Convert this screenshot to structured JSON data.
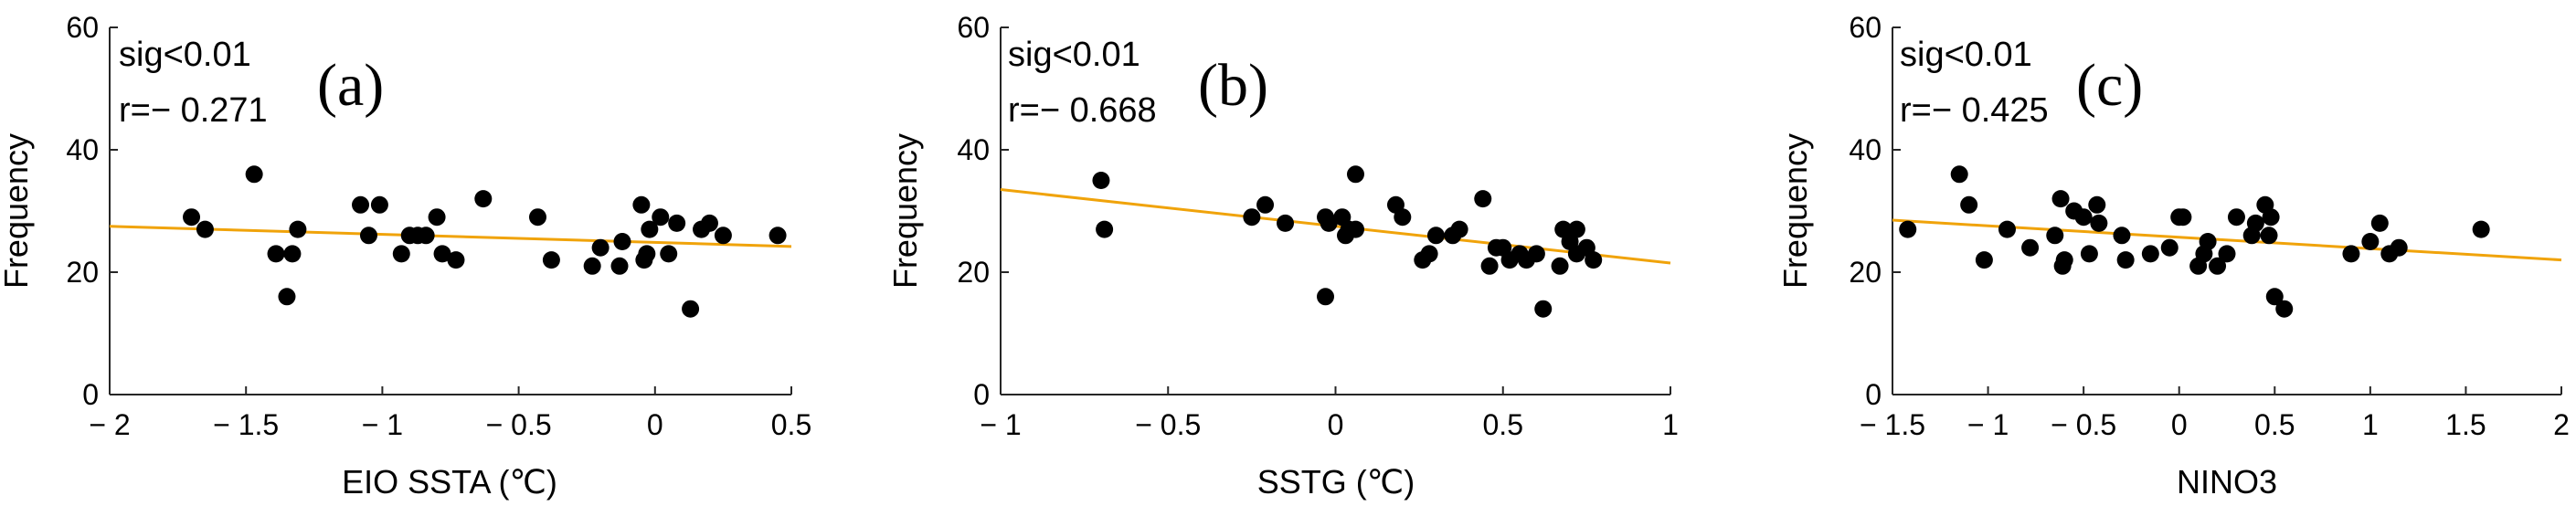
{
  "figure": {
    "panels_label": "Three scatter plots of frequency versus climate indices with fitted regression lines"
  },
  "chart_data": [
    {
      "type": "scatter",
      "panel_label": "(a)",
      "sig_text": "sig<0.01",
      "r_text": "r=− 0.271",
      "xlabel": "EIO SSTA (℃)",
      "ylabel": "Frequency",
      "xlim": [
        -2,
        0.5
      ],
      "ylim": [
        0,
        60
      ],
      "xticks": [
        -2,
        -1.5,
        -1,
        -0.5,
        0,
        0.5
      ],
      "xtick_labels": [
        "− 2",
        "− 1.5",
        "− 1",
        "− 0.5",
        "0",
        "0.5"
      ],
      "yticks": [
        0,
        20,
        40,
        60
      ],
      "ytick_labels": [
        "0",
        "20",
        "40",
        "60"
      ],
      "fit_line": {
        "x": [
          -2,
          0.5
        ],
        "y": [
          27.5,
          24.2
        ],
        "color": "#f0a30a"
      },
      "points": {
        "x": [
          -1.7,
          -1.65,
          -1.47,
          -1.39,
          -1.35,
          -1.33,
          -1.31,
          -1.08,
          -1.05,
          -1.01,
          -0.93,
          -0.9,
          -0.87,
          -0.84,
          -0.8,
          -0.78,
          -0.73,
          -0.63,
          -0.43,
          -0.38,
          -0.23,
          -0.2,
          -0.13,
          -0.12,
          -0.05,
          -0.04,
          -0.03,
          -0.02,
          0.02,
          0.05,
          0.08,
          0.13,
          0.17,
          0.2,
          0.25,
          0.45
        ],
        "y": [
          29,
          27,
          36,
          23,
          16,
          23,
          27,
          31,
          26,
          31,
          23,
          26,
          26,
          26,
          29,
          23,
          22,
          32,
          29,
          22,
          21,
          24,
          21,
          25,
          31,
          22,
          23,
          27,
          29,
          23,
          28,
          14,
          27,
          28,
          26,
          26
        ]
      }
    },
    {
      "type": "scatter",
      "panel_label": "(b)",
      "sig_text": "sig<0.01",
      "r_text": "r=− 0.668",
      "xlabel": "SSTG (℃)",
      "ylabel": "Frequency",
      "xlim": [
        -1,
        1
      ],
      "ylim": [
        0,
        60
      ],
      "xticks": [
        -1,
        -0.5,
        0,
        0.5,
        1
      ],
      "xtick_labels": [
        "− 1",
        "− 0.5",
        "0",
        "0.5",
        "1"
      ],
      "yticks": [
        0,
        20,
        40,
        60
      ],
      "ytick_labels": [
        "0",
        "20",
        "40",
        "60"
      ],
      "fit_line": {
        "x": [
          -1,
          1
        ],
        "y": [
          33.5,
          21.5
        ],
        "color": "#f0a30a"
      },
      "points": {
        "x": [
          -0.7,
          -0.69,
          -0.25,
          -0.21,
          -0.15,
          -0.03,
          -0.03,
          -0.02,
          0.02,
          0.03,
          0.04,
          0.06,
          0.06,
          0.18,
          0.2,
          0.26,
          0.28,
          0.3,
          0.35,
          0.37,
          0.44,
          0.46,
          0.48,
          0.5,
          0.52,
          0.55,
          0.57,
          0.6,
          0.62,
          0.67,
          0.68,
          0.7,
          0.72,
          0.72,
          0.75,
          0.77
        ],
        "y": [
          35,
          27,
          29,
          31,
          28,
          16,
          29,
          28,
          29,
          26,
          27,
          36,
          27,
          31,
          29,
          22,
          23,
          26,
          26,
          27,
          32,
          21,
          24,
          24,
          22,
          23,
          22,
          23,
          14,
          21,
          27,
          25,
          23,
          27,
          24,
          22
        ]
      }
    },
    {
      "type": "scatter",
      "panel_label": "(c)",
      "sig_text": "sig<0.01",
      "r_text": "r=− 0.425",
      "xlabel": "NINO3",
      "ylabel": "Frequency",
      "xlim": [
        -1.5,
        2
      ],
      "ylim": [
        0,
        60
      ],
      "xticks": [
        -1.5,
        -1,
        -0.5,
        0,
        0.5,
        1,
        1.5,
        2
      ],
      "xtick_labels": [
        "− 1.5",
        "− 1",
        "− 0.5",
        "0",
        "0.5",
        "1",
        "1.5",
        "2"
      ],
      "yticks": [
        0,
        20,
        40,
        60
      ],
      "ytick_labels": [
        "0",
        "20",
        "40",
        "60"
      ],
      "fit_line": {
        "x": [
          -1.5,
          2
        ],
        "y": [
          28.5,
          22.0
        ],
        "color": "#f0a30a"
      },
      "points": {
        "x": [
          -1.42,
          -1.15,
          -1.1,
          -1.02,
          -0.9,
          -0.78,
          -0.65,
          -0.62,
          -0.61,
          -0.6,
          -0.55,
          -0.5,
          -0.47,
          -0.43,
          -0.42,
          -0.3,
          -0.28,
          -0.15,
          -0.05,
          0.0,
          0.02,
          0.1,
          0.13,
          0.15,
          0.2,
          0.25,
          0.3,
          0.38,
          0.4,
          0.45,
          0.47,
          0.48,
          0.5,
          0.55,
          0.9,
          1.0,
          1.05,
          1.1,
          1.15,
          1.58
        ],
        "y": [
          27,
          36,
          31,
          22,
          27,
          24,
          26,
          32,
          21,
          22,
          30,
          29,
          23,
          31,
          28,
          26,
          22,
          23,
          24,
          29,
          29,
          21,
          23,
          25,
          21,
          23,
          29,
          26,
          28,
          31,
          26,
          29,
          16,
          14,
          23,
          25,
          28,
          23,
          24,
          27
        ]
      }
    }
  ]
}
